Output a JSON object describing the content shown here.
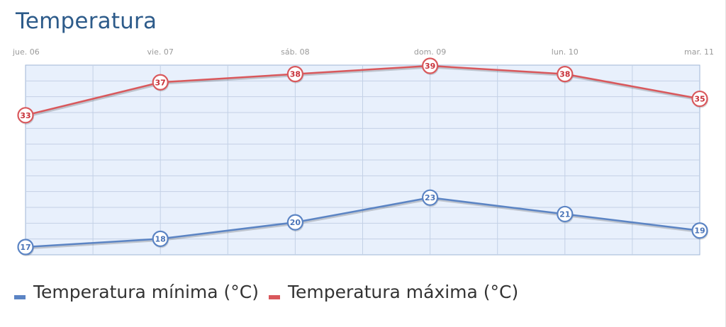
{
  "title": "Temperatura",
  "chart_data": {
    "type": "line",
    "title": "Temperatura",
    "categories": [
      "jue. 06",
      "vie. 07",
      "sáb. 08",
      "dom. 09",
      "lun. 10",
      "mar. 11"
    ],
    "series": [
      {
        "name": "Temperatura mínima (°C)",
        "values": [
          17,
          18,
          20,
          23,
          21,
          19
        ],
        "color": "#5b84c4",
        "point_text_color": "#4a74b8"
      },
      {
        "name": "Temperatura máxima (°C)",
        "values": [
          33,
          37,
          38,
          39,
          38,
          35
        ],
        "color": "#d9585c",
        "point_text_color": "#c8323a"
      }
    ],
    "ylim": [
      17,
      39
    ],
    "grid": true,
    "data_labels": true,
    "legend": "bottom",
    "plot_background": "#e8f0fc",
    "grid_color": "#c3d1e6"
  }
}
